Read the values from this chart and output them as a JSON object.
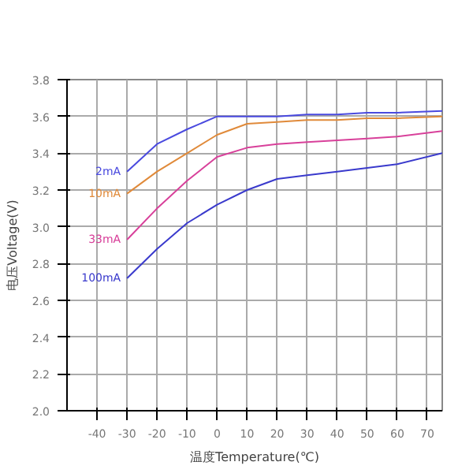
{
  "chart_data": {
    "type": "line",
    "xlabel": "温度Temperature(℃)",
    "ylabel": "电压Voltage(V)",
    "xlim": [
      -50,
      75
    ],
    "xticks": [
      -40,
      -30,
      -20,
      -10,
      0,
      10,
      20,
      30,
      40,
      50,
      60,
      70
    ],
    "ylim": [
      2.0,
      3.8
    ],
    "yticks": [
      {
        "value": 2.0,
        "label": "2.0"
      },
      {
        "value": 2.2,
        "label": "2.2"
      },
      {
        "value": 2.4,
        "label": "2.4"
      },
      {
        "value": 2.6,
        "label": "2.6"
      },
      {
        "value": 2.8,
        "label": "2.8"
      },
      {
        "value": 3.0,
        "label": "3.0"
      },
      {
        "value": 3.2,
        "label": "3.2"
      },
      {
        "value": 3.4,
        "label": "3.4"
      },
      {
        "value": 3.6,
        "label": "3.6"
      },
      {
        "value": 3.8,
        "label": "3.8"
      }
    ],
    "grid": true,
    "marker": "none",
    "line_style": "solid",
    "x": [
      -30,
      -20,
      -10,
      0,
      10,
      20,
      30,
      40,
      50,
      60,
      75
    ],
    "series": [
      {
        "name": "2mA",
        "color": "#4a4adf",
        "values": [
          3.3,
          3.45,
          3.53,
          3.6,
          3.6,
          3.6,
          3.61,
          3.61,
          3.62,
          3.62,
          3.63
        ]
      },
      {
        "name": "10mA",
        "color": "#e08a3a",
        "values": [
          3.18,
          3.3,
          3.4,
          3.5,
          3.56,
          3.57,
          3.58,
          3.58,
          3.59,
          3.59,
          3.6
        ]
      },
      {
        "name": "33mA",
        "color": "#d8409a",
        "values": [
          2.93,
          3.1,
          3.25,
          3.38,
          3.43,
          3.45,
          3.46,
          3.47,
          3.48,
          3.49,
          3.52
        ]
      },
      {
        "name": "100mA",
        "color": "#3a3acc",
        "values": [
          2.72,
          2.88,
          3.02,
          3.12,
          3.2,
          3.26,
          3.28,
          3.3,
          3.32,
          3.34,
          3.4
        ]
      }
    ]
  }
}
